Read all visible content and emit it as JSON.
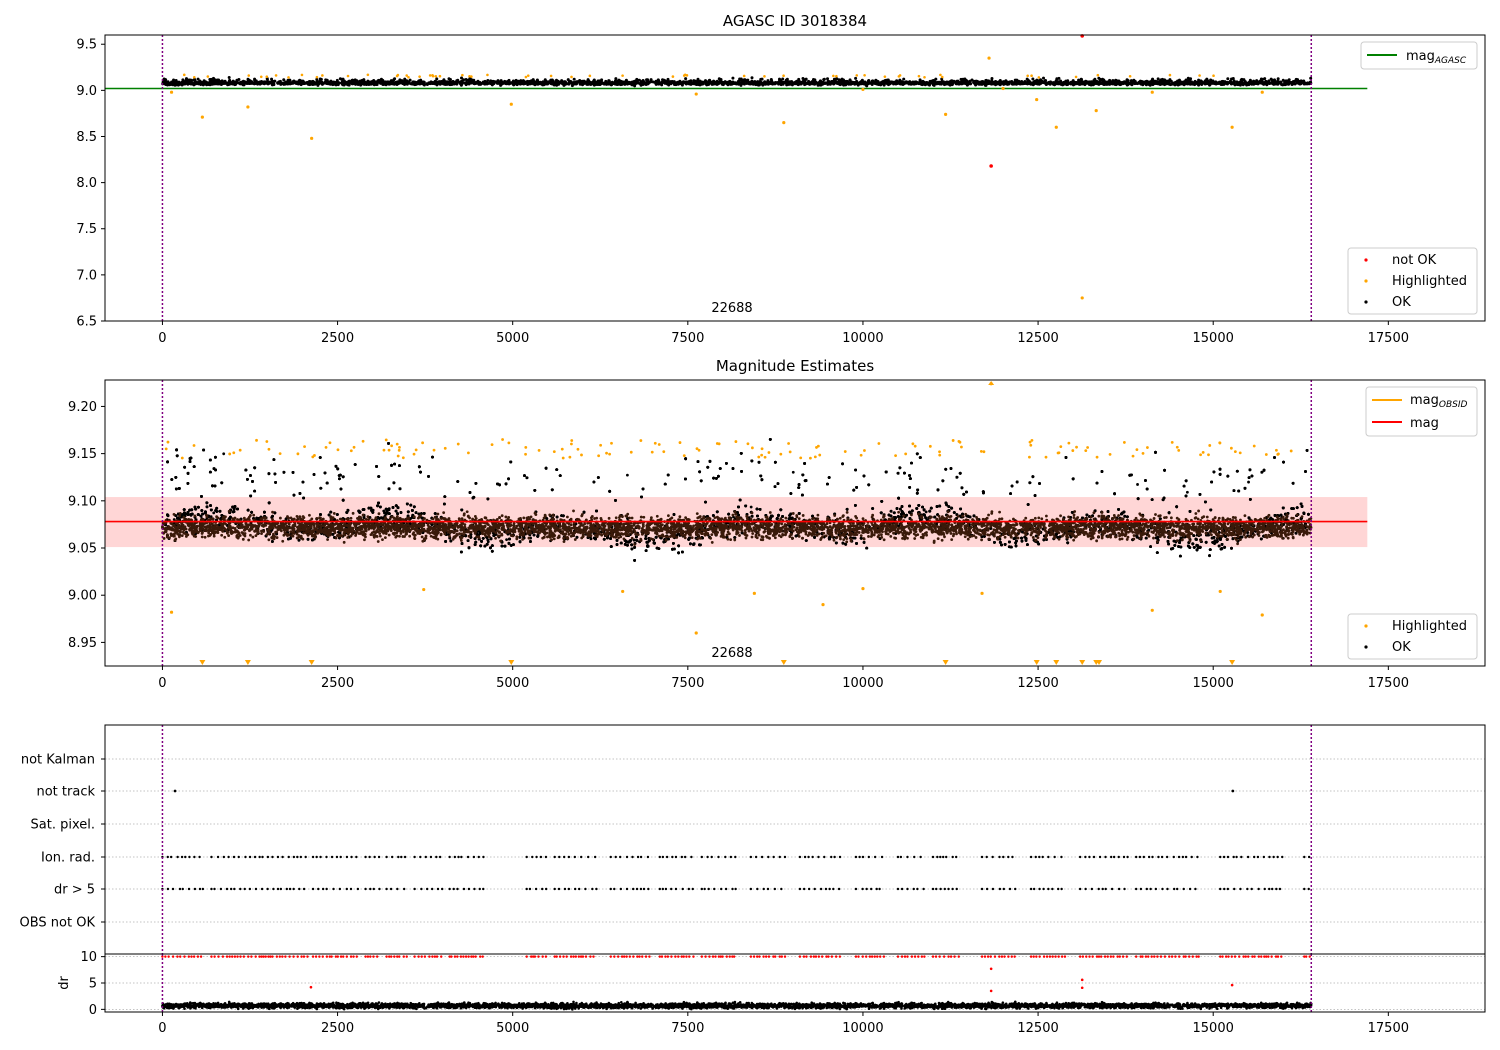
{
  "chart_data": [
    {
      "type": "scatter",
      "title": "AGASC ID 3018384",
      "xlim": [
        -820,
        18880
      ],
      "ylim": [
        6.5,
        9.6
      ],
      "x_ticks": [
        0,
        2500,
        5000,
        7500,
        10000,
        12500,
        15000,
        17500
      ],
      "y_ticks": [
        6.5,
        7.0,
        7.5,
        8.0,
        8.5,
        9.0,
        9.5
      ],
      "y_tick_labels": [
        "6.5",
        "7.0",
        "7.5",
        "8.0",
        "8.5",
        "9.0",
        "9.5"
      ],
      "annotation": "22688",
      "vlines": [
        0,
        16400
      ],
      "series": [
        {
          "name": "not OK",
          "color": "#ff0000",
          "points": [
            [
              11830,
              8.18
            ],
            [
              13130,
              9.59
            ]
          ]
        },
        {
          "name": "Highlighted",
          "color": "#ffa500",
          "points": [
            [
              130,
              8.98
            ],
            [
              570,
              8.71
            ],
            [
              1220,
              8.82
            ],
            [
              2130,
              8.48
            ],
            [
              4980,
              8.85
            ],
            [
              7620,
              8.96
            ],
            [
              8870,
              8.65
            ],
            [
              10000,
              9.01
            ],
            [
              11180,
              8.74
            ],
            [
              11800,
              9.35
            ],
            [
              12480,
              8.9
            ],
            [
              12760,
              8.6
            ],
            [
              13130,
              6.75
            ],
            [
              13330,
              8.78
            ],
            [
              14130,
              8.98
            ],
            [
              15270,
              8.6
            ],
            [
              15700,
              8.98
            ],
            [
              12000,
              9.02
            ]
          ]
        },
        {
          "name": "OK",
          "color": "#000000",
          "x_range": [
            0,
            16400
          ],
          "y_center": 9.08,
          "y_spread": 0.035
        }
      ],
      "hline": {
        "name": "mag",
        "subscript": "AGASC",
        "y": 9.02,
        "color": "#008000",
        "x_range": [
          -820,
          17200
        ]
      },
      "legend_top": [
        {
          "label": "mag",
          "subscript": "AGASC",
          "color": "#008000"
        }
      ],
      "legend_bottom": [
        {
          "label": "not OK",
          "color": "#ff0000"
        },
        {
          "label": "Highlighted",
          "color": "#ffa500"
        },
        {
          "label": "OK",
          "color": "#000000"
        }
      ]
    },
    {
      "type": "scatter",
      "title": "Magnitude Estimates",
      "xlim": [
        -820,
        18880
      ],
      "ylim": [
        8.925,
        9.228
      ],
      "x_ticks": [
        0,
        2500,
        5000,
        7500,
        10000,
        12500,
        15000,
        17500
      ],
      "y_ticks": [
        8.95,
        9.0,
        9.05,
        9.1,
        9.15,
        9.2
      ],
      "y_tick_labels": [
        "8.95",
        "9.00",
        "9.05",
        "9.10",
        "9.15",
        "9.20"
      ],
      "annotation": "22688",
      "vlines": [
        0,
        16400
      ],
      "band": {
        "y0": 9.051,
        "y1": 9.104,
        "color": "#ffcccc"
      },
      "mean_line": {
        "y": 9.078,
        "color": "#ff0000"
      },
      "series": [
        {
          "name": "Highlighted",
          "color": "#ffa500",
          "points": [
            [
              130,
              8.982
            ],
            [
              3730,
              9.006
            ],
            [
              6570,
              9.004
            ],
            [
              7620,
              8.96
            ],
            [
              8450,
              9.002
            ],
            [
              9430,
              8.99
            ],
            [
              10000,
              9.007
            ],
            [
              11700,
              9.002
            ],
            [
              14130,
              8.984
            ],
            [
              15100,
              9.004
            ],
            [
              15700,
              8.979
            ],
            [
              11830,
              9.224
            ]
          ]
        },
        {
          "name": "OK",
          "color": "#000000",
          "x_range": [
            0,
            16400
          ],
          "y_center": 9.072,
          "y_spread": 0.028
        }
      ],
      "offscale_low_x": [
        570,
        1220,
        2130,
        4980,
        8870,
        11180,
        12480,
        12760,
        13130,
        13330,
        13370,
        15270
      ],
      "legend_top": [
        {
          "label": "mag",
          "subscript": "OBSID",
          "color": "#ffa500"
        },
        {
          "label": "mag",
          "subscript": "",
          "color": "#ff0000"
        }
      ],
      "legend_bottom": [
        {
          "label": "Highlighted",
          "color": "#ffa500"
        },
        {
          "label": "OK",
          "color": "#000000"
        }
      ]
    },
    {
      "type": "scatter",
      "title": "",
      "xlim": [
        -820,
        18880
      ],
      "categories": [
        "not Kalman",
        "not track",
        "Sat. pixel.",
        "Ion. rad.",
        "dr > 5",
        "OBS not OK"
      ],
      "flag_points": {
        "not track": [
          180,
          15280
        ],
        "Ion. rad.": "observation-blocks",
        "dr > 5": "observation-blocks"
      },
      "vlines": [
        0,
        16400
      ]
    },
    {
      "type": "scatter",
      "title": "",
      "xlim": [
        -820,
        18880
      ],
      "ylim": [
        -0.5,
        10.5
      ],
      "x_ticks": [
        0,
        2500,
        5000,
        7500,
        10000,
        12500,
        15000,
        17500
      ],
      "y_ticks": [
        0,
        5,
        10
      ],
      "y_tick_labels": [
        "0",
        "5",
        "10"
      ],
      "ylabel": "dr",
      "vlines": [
        0,
        16400
      ],
      "series": [
        {
          "name": "dr",
          "color": "#000000",
          "x_range": [
            0,
            16400
          ],
          "y_center": 0.7,
          "y_spread": 0.5
        },
        {
          "name": "dr > 10 (clipped)",
          "color": "#ff0000",
          "y": 10
        },
        {
          "name": "dr outliers",
          "color": "#ff0000",
          "points": [
            [
              2120,
              4.2
            ],
            [
              11830,
              7.7
            ],
            [
              11830,
              3.5
            ],
            [
              13130,
              5.6
            ],
            [
              13130,
              4.1
            ],
            [
              15270,
              4.6
            ]
          ]
        }
      ]
    }
  ],
  "colors": {
    "vline": "#800080",
    "grid": "#b0b0b0"
  }
}
